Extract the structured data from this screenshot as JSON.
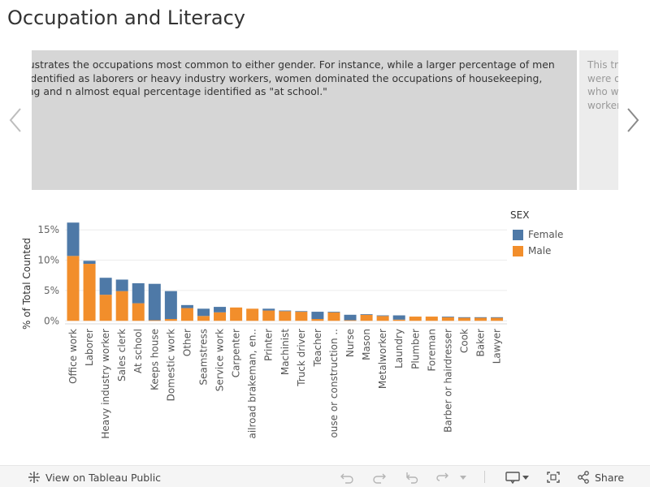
{
  "page": {
    "title": "Occupation and Literacy"
  },
  "story": {
    "current_text": "art illustrates the occupations most common to either gender. For instance, while a larger percentage of men did . identified as laborers or heavy industry workers, women dominated the occupations of housekeeping, nursing and n almost equal percentage identified as \"at school.\"",
    "next_text": "This tre\nwere o\nwho we\nworker"
  },
  "legend": {
    "title": "SEX",
    "items": [
      {
        "label": "Female",
        "color": "#4e79a7"
      },
      {
        "label": "Male",
        "color": "#f28e2b"
      }
    ]
  },
  "chart_data": {
    "type": "bar",
    "stacked": true,
    "title": "",
    "xlabel": "",
    "ylabel": "% of Total Counted",
    "ylim": [
      -0.5,
      16.5
    ],
    "yticks": [
      "0%",
      "5%",
      "10%",
      "15%"
    ],
    "ytick_values": [
      0,
      5,
      10,
      15
    ],
    "categories": [
      "Office work",
      "Laborer",
      "Heavy industry worker",
      "Sales clerk",
      "At school",
      "Keeps house",
      "Domestic work",
      "Other",
      "Seamstress",
      "Service work",
      "Carpenter",
      "Railroad brakeman, en..",
      "Printer",
      "Machinist",
      "Truck driver",
      "Teacher",
      "House or construction ..",
      "Nurse",
      "Mason",
      "Metalworker",
      "Laundry",
      "Plumber",
      "Foreman",
      "Barber or hairdresser",
      "Cook",
      "Baker",
      "Lawyer"
    ],
    "series": [
      {
        "name": "Male",
        "color": "#f28e2b",
        "values": [
          10.7,
          9.4,
          4.3,
          4.9,
          2.9,
          0.1,
          0.3,
          2.1,
          0.8,
          1.4,
          2.2,
          2.0,
          1.7,
          1.6,
          1.5,
          0.3,
          1.4,
          0.1,
          1.0,
          0.8,
          0.2,
          0.7,
          0.7,
          0.6,
          0.5,
          0.5,
          0.5
        ]
      },
      {
        "name": "Female",
        "color": "#4e79a7",
        "values": [
          5.5,
          0.5,
          2.8,
          1.9,
          3.3,
          6.0,
          4.6,
          0.5,
          1.2,
          0.9,
          0.0,
          0.0,
          0.3,
          0.1,
          0.1,
          1.2,
          0.1,
          0.9,
          0.1,
          0.1,
          0.7,
          0.0,
          0.0,
          0.1,
          0.1,
          0.1,
          0.1
        ]
      }
    ]
  },
  "toolbar": {
    "view_label": "View on Tableau Public",
    "share_label": "Share"
  }
}
